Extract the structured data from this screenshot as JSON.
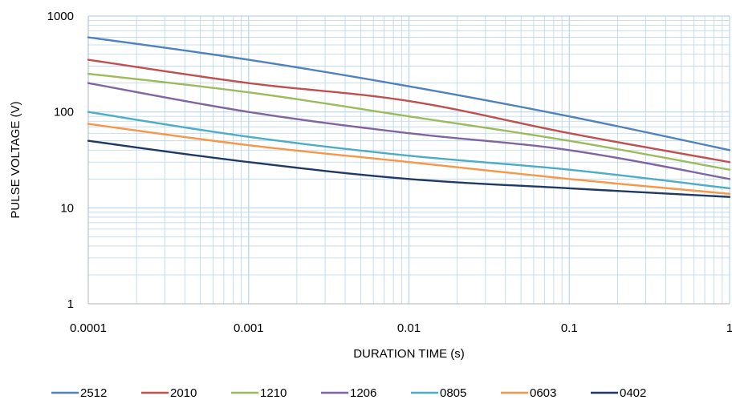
{
  "chart_data": {
    "type": "line",
    "title": "",
    "xlabel": "DURATION TIME (s)",
    "ylabel": "PULSE VOLTAGE (V)",
    "x_scale": "log",
    "y_scale": "log",
    "xlim": [
      0.0001,
      1
    ],
    "ylim": [
      1,
      1000
    ],
    "x_ticks": [
      {
        "value": 0.0001,
        "label": "0.0001"
      },
      {
        "value": 0.001,
        "label": "0.001"
      },
      {
        "value": 0.01,
        "label": "0.01"
      },
      {
        "value": 0.1,
        "label": "0.1"
      },
      {
        "value": 1,
        "label": "1"
      }
    ],
    "y_ticks": [
      {
        "value": 1,
        "label": "1"
      },
      {
        "value": 10,
        "label": "10"
      },
      {
        "value": 100,
        "label": "100"
      },
      {
        "value": 1000,
        "label": "1000"
      }
    ],
    "grid": true,
    "grid_color": "#b8d4ee",
    "legend_position": "bottom",
    "series": [
      {
        "name": "2512",
        "color": "#4f81bd",
        "x": [
          0.0001,
          0.001,
          0.01,
          0.1,
          1
        ],
        "y": [
          600,
          350,
          185,
          90,
          40
        ]
      },
      {
        "name": "2010",
        "color": "#c0504d",
        "x": [
          0.0001,
          0.001,
          0.01,
          0.1,
          1
        ],
        "y": [
          350,
          200,
          130,
          60,
          30
        ]
      },
      {
        "name": "1210",
        "color": "#9bbb59",
        "x": [
          0.0001,
          0.001,
          0.01,
          0.1,
          1
        ],
        "y": [
          250,
          160,
          90,
          50,
          25
        ]
      },
      {
        "name": "1206",
        "color": "#8064a2",
        "x": [
          0.0001,
          0.001,
          0.01,
          0.1,
          1
        ],
        "y": [
          200,
          100,
          60,
          40,
          20
        ]
      },
      {
        "name": "0805",
        "color": "#4bacc6",
        "x": [
          0.0001,
          0.001,
          0.01,
          0.1,
          1
        ],
        "y": [
          100,
          55,
          35,
          25,
          16
        ]
      },
      {
        "name": "0603",
        "color": "#f79646",
        "x": [
          0.0001,
          0.001,
          0.01,
          0.1,
          1
        ],
        "y": [
          75,
          45,
          30,
          20,
          14
        ]
      },
      {
        "name": "0402",
        "color": "#1f3864",
        "x": [
          0.0001,
          0.001,
          0.01,
          0.1,
          1
        ],
        "y": [
          50,
          30,
          20,
          16,
          13
        ]
      }
    ]
  }
}
